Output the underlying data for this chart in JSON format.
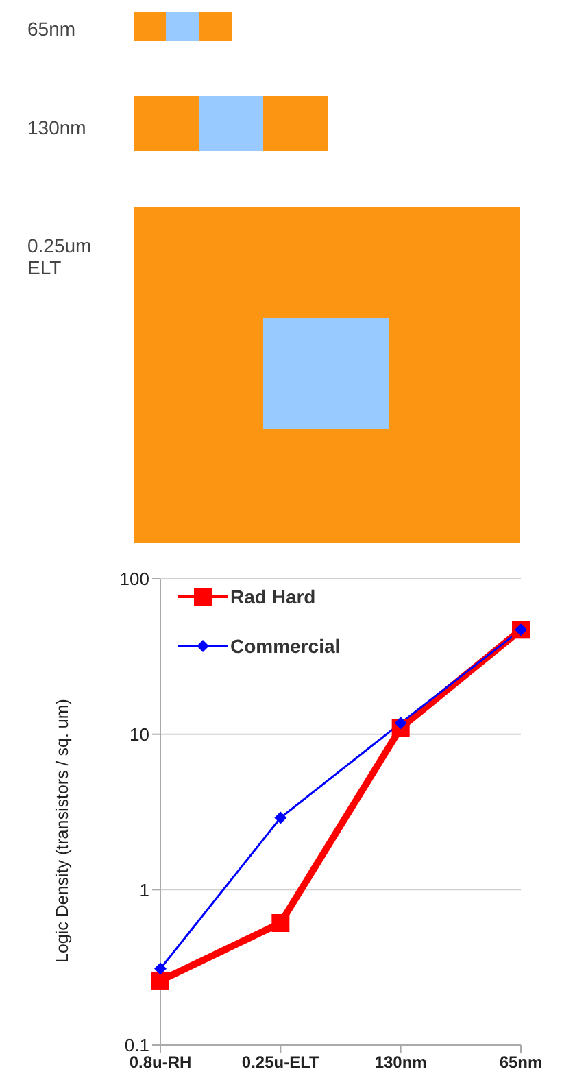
{
  "chart_data": [
    {
      "type": "other",
      "annotations": [
        "65nm",
        "130nm",
        "0.25um\nELT"
      ]
    },
    {
      "type": "line",
      "ylabel": "Logic Density (transistors / sq. um)",
      "categories": [
        "0.8u-RH",
        "0.25u-ELT",
        "130nm",
        "65nm"
      ],
      "log": true,
      "ylim": [
        0.1,
        100
      ],
      "yticks": [
        0.1,
        1,
        10,
        100
      ],
      "grid": "y",
      "legend": "top left",
      "series": [
        {
          "name": "Rad Hard",
          "color": "#ff0000",
          "marker": "square",
          "values": [
            0.26,
            0.61,
            11,
            47
          ]
        },
        {
          "name": "Commercial",
          "color": "#0000ff",
          "marker": "diamond",
          "values": [
            0.31,
            2.9,
            11.8,
            47
          ]
        }
      ]
    }
  ]
}
